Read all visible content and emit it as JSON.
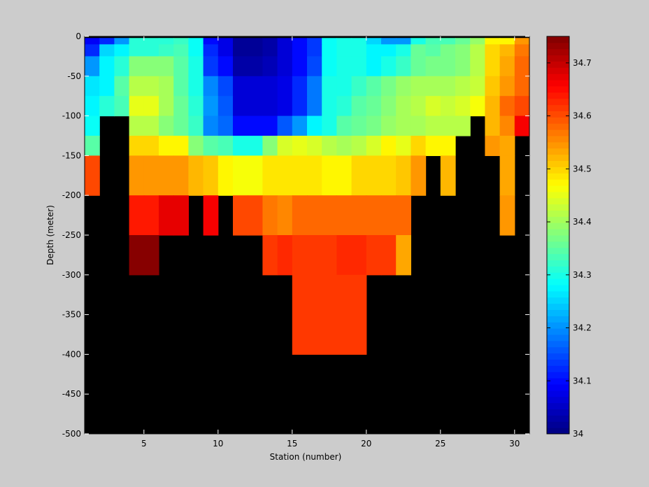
{
  "chart_data": {
    "type": "heatmap",
    "title": "",
    "xlabel": "Station (number)",
    "ylabel": "Depth (meter)",
    "xlim": [
      1,
      31
    ],
    "ylim": [
      -500,
      0
    ],
    "x_ticks": [
      5,
      10,
      15,
      20,
      25,
      30
    ],
    "y_ticks": [
      0,
      -50,
      -100,
      -150,
      -200,
      -250,
      -300,
      -350,
      -400,
      -450,
      -500
    ],
    "colorbar": {
      "colormap": "jet",
      "clim": [
        34.0,
        34.75
      ],
      "ticks": [
        34,
        34.1,
        34.2,
        34.3,
        34.4,
        34.5,
        34.6,
        34.7
      ],
      "location": "right"
    },
    "missing_color": "#000000",
    "background_color": "#cccccc",
    "station_edges": [
      1,
      2,
      3,
      4,
      5,
      6,
      7,
      8,
      9,
      10,
      11,
      12,
      13,
      14,
      15,
      16,
      17,
      18,
      19,
      20,
      21,
      22,
      23,
      24,
      25,
      26,
      27,
      28,
      29,
      30,
      31
    ],
    "depth_edges": [
      0,
      -2,
      -10,
      -25,
      -50,
      -75,
      -100,
      -125,
      -150,
      -200,
      -250,
      -300,
      -400,
      -500
    ],
    "salinity": [
      [
        null,
        null,
        null,
        null,
        null,
        null,
        null,
        null,
        null,
        null,
        null,
        null,
        null,
        null,
        null,
        null,
        null,
        null,
        null,
        null,
        null,
        null,
        null,
        null,
        null,
        null,
        null,
        null,
        null,
        null
      ],
      [
        34.09,
        34.12,
        34.21,
        34.31,
        34.31,
        34.31,
        34.32,
        34.29,
        34.1,
        34.08,
        34.02,
        34.02,
        34.03,
        34.06,
        34.1,
        34.14,
        34.29,
        34.3,
        34.3,
        34.25,
        34.21,
        34.21,
        34.3,
        34.33,
        34.33,
        34.36,
        34.39,
        34.48,
        34.48,
        34.55
      ],
      [
        34.12,
        34.25,
        34.28,
        34.31,
        34.31,
        34.32,
        34.33,
        34.29,
        34.12,
        34.08,
        34.02,
        34.02,
        34.03,
        34.06,
        34.1,
        34.14,
        34.29,
        34.3,
        34.3,
        34.27,
        34.27,
        34.3,
        34.36,
        34.35,
        34.37,
        34.38,
        34.42,
        34.5,
        34.52,
        34.57
      ],
      [
        34.2,
        34.28,
        34.31,
        34.38,
        34.38,
        34.38,
        34.34,
        34.3,
        34.14,
        34.1,
        34.03,
        34.03,
        34.04,
        34.06,
        34.1,
        34.15,
        34.29,
        34.3,
        34.3,
        34.28,
        34.3,
        34.32,
        34.36,
        34.37,
        34.37,
        34.38,
        34.42,
        34.5,
        34.53,
        34.58
      ],
      [
        34.26,
        34.28,
        34.34,
        34.42,
        34.42,
        34.4,
        34.35,
        34.3,
        34.19,
        34.15,
        34.06,
        34.06,
        34.06,
        34.08,
        34.12,
        34.18,
        34.3,
        34.3,
        34.32,
        34.34,
        34.37,
        34.39,
        34.41,
        34.41,
        34.41,
        34.42,
        34.43,
        34.51,
        34.55,
        34.58
      ],
      [
        34.28,
        34.31,
        34.33,
        34.45,
        34.45,
        34.4,
        34.36,
        34.31,
        34.2,
        34.16,
        34.06,
        34.06,
        34.06,
        34.08,
        34.12,
        34.18,
        34.3,
        34.31,
        34.34,
        34.36,
        34.38,
        34.4,
        34.42,
        34.44,
        34.43,
        34.44,
        34.46,
        34.52,
        34.58,
        34.6
      ],
      [
        34.29,
        null,
        null,
        34.42,
        34.42,
        34.38,
        34.36,
        34.32,
        34.19,
        34.17,
        34.1,
        34.1,
        34.1,
        34.16,
        34.2,
        34.28,
        34.3,
        34.34,
        34.36,
        34.37,
        34.39,
        34.4,
        34.41,
        34.42,
        34.42,
        34.42,
        null,
        34.52,
        34.56,
        34.66
      ],
      [
        34.35,
        null,
        null,
        34.5,
        34.5,
        34.48,
        34.48,
        34.38,
        34.34,
        34.33,
        34.3,
        34.3,
        34.38,
        34.44,
        34.45,
        34.44,
        34.42,
        34.4,
        34.42,
        34.44,
        34.47,
        34.45,
        34.5,
        34.48,
        34.48,
        null,
        null,
        34.54,
        34.53,
        null
      ],
      [
        34.6,
        null,
        null,
        34.55,
        34.55,
        34.55,
        34.55,
        34.52,
        34.51,
        34.48,
        34.46,
        34.46,
        34.49,
        34.49,
        34.49,
        34.49,
        34.48,
        34.48,
        34.5,
        34.5,
        34.5,
        34.51,
        34.54,
        null,
        34.52,
        null,
        null,
        null,
        34.53,
        null
      ],
      [
        null,
        null,
        null,
        34.64,
        34.64,
        34.67,
        34.67,
        null,
        34.66,
        null,
        34.6,
        34.6,
        34.57,
        34.56,
        34.58,
        34.58,
        34.58,
        34.58,
        34.58,
        34.58,
        34.58,
        34.58,
        null,
        null,
        null,
        null,
        null,
        null,
        34.54,
        null
      ],
      [
        null,
        null,
        null,
        34.74,
        34.74,
        null,
        null,
        null,
        null,
        null,
        null,
        null,
        34.62,
        34.63,
        34.61,
        34.61,
        34.62,
        34.63,
        34.63,
        34.62,
        34.62,
        34.53,
        null,
        null,
        null,
        null,
        null,
        null,
        null,
        null
      ],
      [
        null,
        null,
        null,
        null,
        null,
        null,
        null,
        null,
        null,
        null,
        null,
        null,
        null,
        null,
        34.61,
        34.61,
        34.62,
        34.62,
        34.62,
        null,
        null,
        null,
        null,
        null,
        null,
        null,
        null,
        null,
        null,
        null
      ],
      [
        null,
        null,
        null,
        null,
        null,
        null,
        null,
        null,
        null,
        null,
        null,
        null,
        null,
        null,
        null,
        null,
        null,
        null,
        null,
        null,
        null,
        null,
        null,
        null,
        null,
        null,
        null,
        null,
        null,
        null
      ]
    ]
  }
}
